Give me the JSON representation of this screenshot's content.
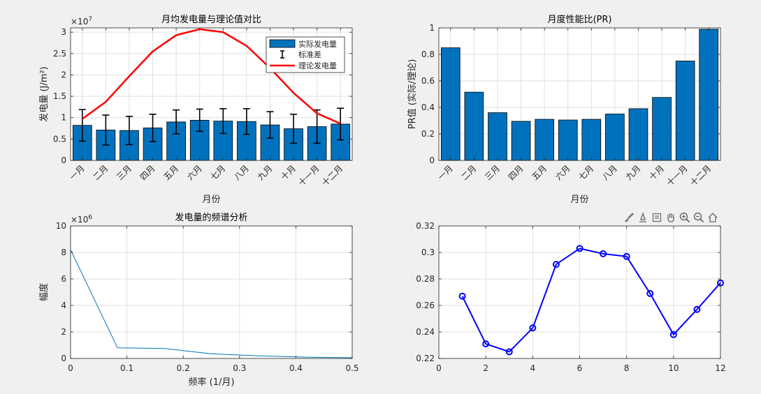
{
  "months": [
    "一月",
    "二月",
    "三月",
    "四月",
    "五月",
    "六月",
    "七月",
    "八月",
    "九月",
    "十月",
    "十一月",
    "十二月"
  ],
  "chart_data": [
    {
      "id": "monthly",
      "type": "bar",
      "title": "月均发电量与理论值对比",
      "xlabel": "月份",
      "ylabel": "发电量 (J/m²)",
      "y_exponent": "×10",
      "y_exponent_power": "7",
      "ylim": [
        0,
        3.1
      ],
      "yticks": [
        0,
        0.5,
        1,
        1.5,
        2,
        2.5,
        3
      ],
      "ytick_labels": [
        "0",
        "0.5",
        "1",
        "1.5",
        "2",
        "2.5",
        "3"
      ],
      "grid": true,
      "legend_position": "top-right",
      "series": [
        {
          "name": "实际发电量",
          "kind": "bar",
          "color": "#0072bd",
          "values": [
            0.82,
            0.71,
            0.7,
            0.76,
            0.9,
            0.94,
            0.92,
            0.91,
            0.83,
            0.74,
            0.79,
            0.85
          ]
        },
        {
          "name": "标准差",
          "kind": "errorbar",
          "color": "#000000",
          "errors": [
            0.37,
            0.35,
            0.33,
            0.32,
            0.28,
            0.26,
            0.29,
            0.3,
            0.31,
            0.34,
            0.39,
            0.37
          ]
        },
        {
          "name": "理论发电量",
          "kind": "line",
          "color": "#ff0000",
          "values": [
            0.97,
            1.37,
            1.97,
            2.55,
            2.93,
            3.07,
            3.0,
            2.68,
            2.16,
            1.58,
            1.1,
            0.86
          ]
        }
      ]
    },
    {
      "id": "pr",
      "type": "bar",
      "title": "月度性能比(PR)",
      "xlabel": "月份",
      "ylabel": "PR值 (实际/理论)",
      "ylim": [
        0,
        1
      ],
      "yticks": [
        0,
        0.2,
        0.4,
        0.6,
        0.8,
        1
      ],
      "ytick_labels": [
        "0",
        "0.2",
        "0.4",
        "0.6",
        "0.8",
        "1"
      ],
      "grid": true,
      "series": [
        {
          "kind": "bar",
          "color": "#0072bd",
          "values": [
            0.85,
            0.515,
            0.36,
            0.295,
            0.31,
            0.305,
            0.31,
            0.35,
            0.39,
            0.475,
            0.75,
            0.99
          ]
        }
      ]
    },
    {
      "id": "spectrum",
      "type": "line",
      "title": "发电量的频谱分析",
      "xlabel": "频率 (1/月)",
      "ylabel": "幅度",
      "y_exponent": "×10",
      "y_exponent_power": "6",
      "xlim": [
        0,
        0.5
      ],
      "ylim": [
        0,
        10
      ],
      "xticks": [
        0,
        0.1,
        0.2,
        0.3,
        0.4,
        0.5
      ],
      "xtick_labels": [
        "0",
        "0.1",
        "0.2",
        "0.3",
        "0.4",
        "0.5"
      ],
      "yticks": [
        0,
        2,
        4,
        6,
        8,
        10
      ],
      "ytick_labels": [
        "0",
        "2",
        "4",
        "6",
        "8",
        "10"
      ],
      "grid": true,
      "series": [
        {
          "kind": "line",
          "color": "#0072bd",
          "x": [
            0,
            0.0833,
            0.1667,
            0.25,
            0.3333,
            0.4167,
            0.5
          ],
          "y": [
            8.2,
            0.8,
            0.75,
            0.35,
            0.2,
            0.1,
            0.05
          ]
        }
      ]
    },
    {
      "id": "scatterline",
      "type": "line",
      "title": "",
      "xlabel": "",
      "ylabel": "",
      "xlim": [
        0,
        12
      ],
      "ylim": [
        0.22,
        0.32
      ],
      "xticks": [
        0,
        2,
        4,
        6,
        8,
        10,
        12
      ],
      "xtick_labels": [
        "0",
        "2",
        "4",
        "6",
        "8",
        "10",
        "12"
      ],
      "yticks": [
        0.22,
        0.24,
        0.26,
        0.28,
        0.3,
        0.32
      ],
      "ytick_labels": [
        "0.22",
        "0.24",
        "0.26",
        "0.28",
        "0.3",
        "0.32"
      ],
      "grid": true,
      "series": [
        {
          "kind": "line-marker",
          "color": "#0000ff",
          "x": [
            1,
            2,
            3,
            4,
            5,
            6,
            7,
            8,
            9,
            10,
            11,
            12
          ],
          "y": [
            0.267,
            0.231,
            0.225,
            0.243,
            0.291,
            0.303,
            0.299,
            0.297,
            0.269,
            0.238,
            0.257,
            0.277
          ]
        }
      ]
    }
  ],
  "toolbar": {
    "icons": [
      "brush-icon",
      "data-tip-icon",
      "legend-icon",
      "pan-hand-icon",
      "zoom-in-icon",
      "zoom-out-icon",
      "home-icon"
    ]
  }
}
